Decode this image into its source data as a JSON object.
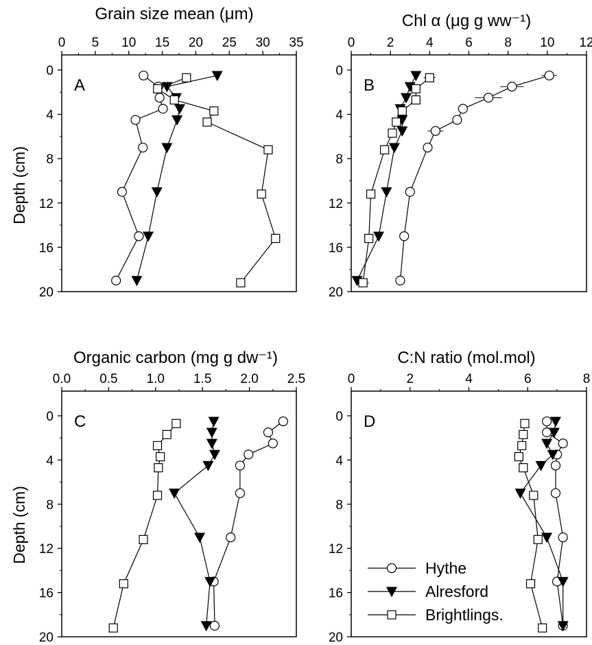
{
  "markers": {
    "Hythe": "circle",
    "Alresford": "triangle-down",
    "Brightlings.": "square"
  },
  "chart_data": [
    {
      "type": "line",
      "panel_label": "A",
      "title": "Grain size mean (μm)",
      "xlim": [
        0,
        35
      ],
      "xticks": [
        0,
        5,
        10,
        15,
        20,
        25,
        30,
        35
      ],
      "ylim": [
        0,
        20
      ],
      "yticks": [
        0,
        4,
        8,
        12,
        16,
        20
      ],
      "ylabel": "Depth (cm)",
      "series": [
        {
          "name": "Hythe",
          "x": [
            12.2,
            14.4,
            14.6,
            15.1,
            11.0,
            12.1,
            9.0,
            11.5,
            8.1
          ],
          "y": [
            0.5,
            1.5,
            2.5,
            3.5,
            4.5,
            7.0,
            11.0,
            15.0,
            19.0
          ]
        },
        {
          "name": "Alresford",
          "x": [
            23.2,
            15.7,
            17.1,
            17.6,
            17.2,
            15.7,
            14.2,
            12.9,
            11.2
          ],
          "y": [
            0.5,
            1.5,
            2.5,
            3.5,
            4.5,
            7.0,
            11.0,
            15.0,
            19.0
          ]
        },
        {
          "name": "Brightlings.",
          "x": [
            18.6,
            14.3,
            16.8,
            22.7,
            21.7,
            30.8,
            29.8,
            31.9,
            26.7
          ],
          "y": [
            0.7,
            1.7,
            2.7,
            3.7,
            4.7,
            7.2,
            11.2,
            15.2,
            19.2
          ]
        }
      ]
    },
    {
      "type": "line",
      "panel_label": "B",
      "title": "Chl α (μg g ww⁻¹)",
      "xlim": [
        0,
        12
      ],
      "xticks": [
        0,
        2,
        4,
        6,
        8,
        10,
        12
      ],
      "ylim": [
        0,
        20
      ],
      "yticks": [
        0,
        4,
        8,
        12,
        16,
        20
      ],
      "ylabel": "Depth (cm)",
      "series": [
        {
          "name": "Hythe",
          "x": [
            10.1,
            8.2,
            7.0,
            5.7,
            5.4,
            4.3,
            3.9,
            3.0,
            2.7,
            2.5
          ],
          "y": [
            0.5,
            1.5,
            2.5,
            3.5,
            4.5,
            5.5,
            7.0,
            11.0,
            15.0,
            19.0
          ],
          "xerr": [
            0.4,
            0.6,
            0.7,
            0.2,
            0.2,
            0.4,
            0.1,
            0.1,
            0.2,
            0.1
          ]
        },
        {
          "name": "Alresford",
          "x": [
            3.3,
            3.0,
            2.8,
            2.5,
            2.6,
            2.6,
            2.2,
            1.8,
            1.4,
            0.3
          ],
          "y": [
            0.5,
            1.5,
            2.5,
            3.5,
            4.5,
            5.5,
            7.0,
            11.0,
            15.0,
            19.0
          ],
          "xerr": [
            0,
            0,
            0,
            0,
            0,
            0,
            0,
            0,
            0,
            0
          ]
        },
        {
          "name": "Brightlings.",
          "x": [
            4.0,
            3.3,
            3.3,
            2.6,
            2.3,
            2.1,
            1.7,
            1.0,
            0.9,
            0.6
          ],
          "y": [
            0.7,
            1.7,
            2.7,
            3.7,
            4.7,
            5.7,
            7.2,
            11.2,
            15.2,
            19.2
          ],
          "xerr": [
            0.3,
            0.2,
            0.2,
            0.2,
            0.2,
            0.1,
            0.1,
            0,
            0.1,
            0.3
          ]
        }
      ]
    },
    {
      "type": "line",
      "panel_label": "C",
      "title": "Organic carbon (mg g dw⁻¹)",
      "xlim": [
        0,
        2.5
      ],
      "xticks": [
        "0.0",
        "0.5",
        "1.0",
        "1.5",
        "2.0",
        "2.5"
      ],
      "ylim": [
        0,
        20
      ],
      "yticks": [
        0,
        4,
        8,
        12,
        16,
        20
      ],
      "ylabel": "Depth (cm)",
      "series": [
        {
          "name": "Hythe",
          "x": [
            2.36,
            2.2,
            2.25,
            1.99,
            1.9,
            1.9,
            1.8,
            1.62,
            1.63
          ],
          "y": [
            0.5,
            1.5,
            2.5,
            3.5,
            4.5,
            7.0,
            11.0,
            15.0,
            19.0
          ]
        },
        {
          "name": "Alresford",
          "x": [
            1.62,
            1.6,
            1.6,
            1.63,
            1.56,
            1.2,
            1.47,
            1.58,
            1.54
          ],
          "y": [
            0.5,
            1.5,
            2.5,
            3.5,
            4.5,
            7.0,
            11.0,
            15.0,
            19.0
          ]
        },
        {
          "name": "Brightlings.",
          "x": [
            1.22,
            1.12,
            1.02,
            1.05,
            1.03,
            1.02,
            0.87,
            0.66,
            0.55
          ],
          "y": [
            0.7,
            1.7,
            2.7,
            3.7,
            4.7,
            7.2,
            11.2,
            15.2,
            19.2
          ]
        }
      ]
    },
    {
      "type": "line",
      "panel_label": "D",
      "title": "C:N ratio (mol.mol)",
      "xlim": [
        0,
        8
      ],
      "xticks": [
        0,
        2,
        4,
        6,
        8
      ],
      "ylim": [
        0,
        20
      ],
      "yticks": [
        0,
        4,
        8,
        12,
        16,
        20
      ],
      "ylabel": "Depth (cm)",
      "legend": {
        "position": "bottom-left",
        "entries": [
          "Hythe",
          "Alresford",
          "Brightlings."
        ]
      },
      "series": [
        {
          "name": "Hythe",
          "x": [
            6.65,
            6.65,
            7.2,
            7.0,
            6.95,
            6.95,
            7.2,
            7.0,
            7.2
          ],
          "y": [
            0.5,
            1.5,
            2.5,
            3.5,
            4.5,
            7.0,
            11.0,
            15.0,
            19.0
          ]
        },
        {
          "name": "Alresford",
          "x": [
            6.95,
            6.9,
            6.65,
            6.85,
            6.45,
            5.75,
            6.65,
            7.2,
            7.2
          ],
          "y": [
            0.5,
            1.5,
            2.5,
            3.5,
            4.5,
            7.0,
            11.0,
            15.0,
            19.0
          ]
        },
        {
          "name": "Brightlings.",
          "x": [
            5.9,
            5.85,
            5.8,
            5.7,
            5.85,
            6.2,
            6.35,
            6.1,
            6.5
          ],
          "y": [
            0.7,
            1.7,
            2.7,
            3.7,
            4.7,
            7.2,
            11.2,
            15.2,
            19.2
          ]
        }
      ]
    }
  ]
}
